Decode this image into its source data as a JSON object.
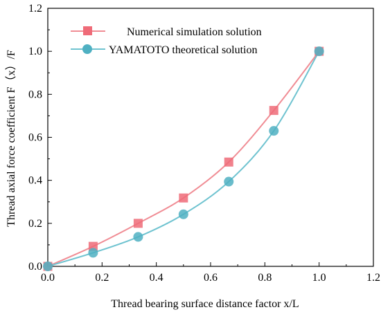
{
  "chart_data": {
    "type": "line",
    "title": "",
    "xlabel": "Thread bearing surface distance factor  x/L",
    "ylabel": "Thread axial force coefficient  F（x）/F",
    "xlim": [
      0.0,
      1.2
    ],
    "ylim": [
      0.0,
      1.2
    ],
    "x_ticks": [
      0.0,
      0.2,
      0.4,
      0.6,
      0.8,
      1.0,
      1.2
    ],
    "y_ticks": [
      0.0,
      0.2,
      0.4,
      0.6,
      0.8,
      1.0,
      1.2
    ],
    "x_tick_labels": [
      "0.0",
      "0.2",
      "0.4",
      "0.6",
      "0.8",
      "1.0",
      "1.2"
    ],
    "y_tick_labels": [
      "0.0",
      "0.2",
      "0.4",
      "0.6",
      "0.8",
      "1.0",
      "1.2"
    ],
    "grid": false,
    "legend_position": "top-left",
    "series": [
      {
        "name": "Numerical simulation solution",
        "marker": "square",
        "color": "#f08c94",
        "marker_color": "#ef6b78",
        "x": [
          0.0,
          0.167,
          0.333,
          0.5,
          0.667,
          0.833,
          1.0
        ],
        "y": [
          0.0,
          0.093,
          0.2,
          0.318,
          0.485,
          0.725,
          1.0
        ]
      },
      {
        "name": "YAMATOTO theoretical solution",
        "marker": "circle",
        "color": "#6fc3d0",
        "marker_color": "#4fb0c2",
        "x": [
          0.0,
          0.167,
          0.333,
          0.5,
          0.667,
          0.833,
          1.0
        ],
        "y": [
          0.0,
          0.063,
          0.137,
          0.242,
          0.394,
          0.63,
          1.0
        ]
      }
    ]
  }
}
